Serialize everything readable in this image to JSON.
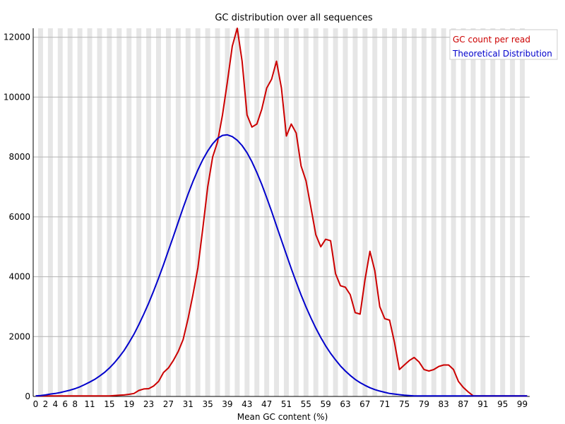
{
  "chart_data": {
    "type": "line",
    "title": "GC distribution over all sequences",
    "xlabel": "Mean GC content (%)",
    "ylabel": "",
    "xlim": [
      0,
      100
    ],
    "ylim": [
      0,
      12300
    ],
    "y_ticks": [
      0,
      2000,
      4000,
      6000,
      8000,
      10000,
      12000
    ],
    "x_tick_labels": [
      "0",
      "2",
      "4",
      "6",
      "8",
      "11",
      "15",
      "19",
      "23",
      "27",
      "31",
      "35",
      "39",
      "43",
      "47",
      "51",
      "55",
      "59",
      "63",
      "67",
      "71",
      "75",
      "79",
      "83",
      "87",
      "91",
      "95",
      "99"
    ],
    "grid": "horizontal lines at y ticks, alternating grey/white vertical bands per x unit",
    "legend_position": "top-right",
    "colors": {
      "gc_count": "#cc0000",
      "theoretical": "#0000cc"
    },
    "series": [
      {
        "name": "GC count per read",
        "color": "#cc0000",
        "x": [
          0,
          1,
          2,
          3,
          4,
          5,
          6,
          7,
          8,
          9,
          10,
          11,
          12,
          13,
          14,
          15,
          16,
          17,
          18,
          19,
          20,
          21,
          22,
          23,
          24,
          25,
          26,
          27,
          28,
          29,
          30,
          31,
          32,
          33,
          34,
          35,
          36,
          37,
          38,
          39,
          40,
          41,
          42,
          43,
          44,
          45,
          46,
          47,
          48,
          49,
          50,
          51,
          52,
          53,
          54,
          55,
          56,
          57,
          58,
          59,
          60,
          61,
          62,
          63,
          64,
          65,
          66,
          67,
          68,
          69,
          70,
          71,
          72,
          73,
          74,
          75,
          76,
          77,
          78,
          79,
          80,
          81,
          82,
          83,
          84,
          85,
          86,
          87,
          88,
          89,
          90,
          91,
          92,
          93,
          94,
          95,
          96,
          97,
          98,
          99,
          100
        ],
        "values": [
          20,
          20,
          20,
          20,
          20,
          20,
          20,
          20,
          20,
          20,
          20,
          20,
          20,
          20,
          20,
          20,
          30,
          40,
          50,
          70,
          100,
          200,
          250,
          260,
          350,
          500,
          800,
          950,
          1200,
          1500,
          1900,
          2600,
          3400,
          4300,
          5600,
          7000,
          8000,
          8500,
          9400,
          10500,
          11700,
          12300,
          11200,
          9400,
          9000,
          9100,
          9600,
          10300,
          10600,
          11200,
          10300,
          8700,
          9100,
          8800,
          7700,
          7200,
          6300,
          5400,
          5000,
          5250,
          5200,
          4100,
          3700,
          3650,
          3400,
          2800,
          2750,
          3900,
          4850,
          4200,
          3000,
          2600,
          2550,
          1800,
          900,
          1050,
          1200,
          1300,
          1150,
          900,
          850,
          900,
          1000,
          1050,
          1050,
          900,
          500,
          300,
          150,
          20,
          20,
          20,
          20,
          20,
          20,
          20,
          20,
          20,
          20,
          20,
          20
        ],
        "_note_x_offset": 0
      },
      {
        "name": "Theoretical Distribution",
        "color": "#0000cc",
        "x": [
          0,
          1,
          2,
          3,
          4,
          5,
          6,
          7,
          8,
          9,
          10,
          11,
          12,
          13,
          14,
          15,
          16,
          17,
          18,
          19,
          20,
          21,
          22,
          23,
          24,
          25,
          26,
          27,
          28,
          29,
          30,
          31,
          32,
          33,
          34,
          35,
          36,
          37,
          38,
          39,
          40,
          41,
          42,
          43,
          44,
          45,
          46,
          47,
          48,
          49,
          50,
          51,
          52,
          53,
          54,
          55,
          56,
          57,
          58,
          59,
          60,
          61,
          62,
          63,
          64,
          65,
          66,
          67,
          68,
          69,
          70,
          71,
          72,
          73,
          74,
          75,
          76,
          77,
          78,
          79,
          80,
          81,
          82,
          83,
          84,
          85,
          86,
          87,
          88,
          89,
          90,
          91,
          92,
          93,
          94,
          95,
          96,
          97,
          98,
          99,
          100
        ],
        "values": [
          20,
          30,
          50,
          80,
          100,
          130,
          170,
          210,
          260,
          320,
          400,
          480,
          570,
          680,
          800,
          950,
          1120,
          1320,
          1540,
          1800,
          2080,
          2400,
          2750,
          3120,
          3520,
          3950,
          4400,
          4870,
          5340,
          5820,
          6300,
          6760,
          7180,
          7570,
          7910,
          8200,
          8440,
          8620,
          8720,
          8740,
          8680,
          8560,
          8380,
          8140,
          7840,
          7480,
          7080,
          6640,
          6180,
          5700,
          5220,
          4740,
          4270,
          3820,
          3390,
          2990,
          2620,
          2280,
          1970,
          1690,
          1440,
          1220,
          1020,
          850,
          700,
          570,
          460,
          370,
          290,
          230,
          180,
          140,
          100,
          80,
          60,
          40,
          30,
          20,
          20,
          20,
          20,
          20,
          20,
          20,
          20,
          20,
          20,
          20,
          20,
          20,
          20,
          20,
          20,
          20,
          20,
          20,
          20,
          20,
          20,
          20,
          20
        ]
      }
    ]
  }
}
